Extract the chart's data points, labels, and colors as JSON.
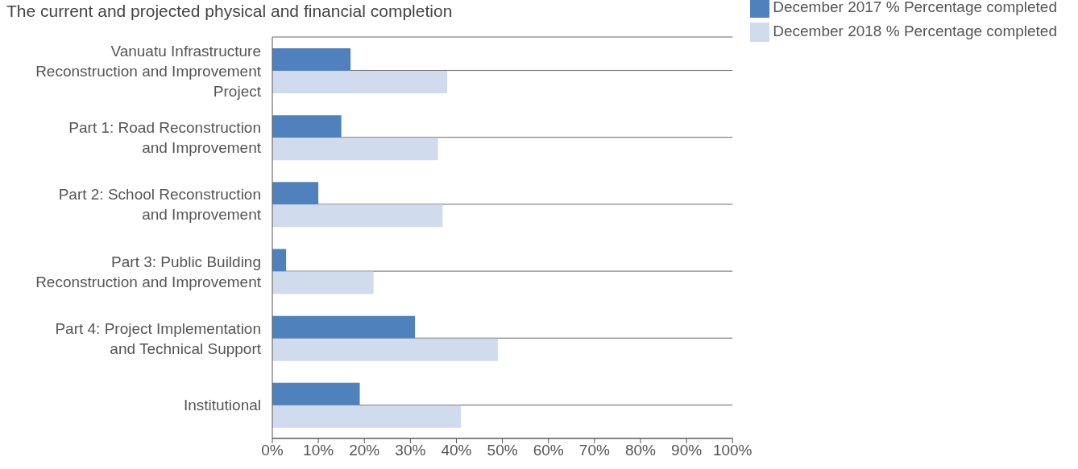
{
  "chart_data": {
    "type": "bar",
    "orientation": "horizontal",
    "title": "The current and projected physical and financial completion",
    "categories": [
      "Vanuatu Infrastructure Reconstruction and Improvement Project",
      "Part 1: Road Reconstruction and Improvement",
      "Part 2: School Reconstruction and Improvement",
      "Part 3: Public Building Reconstruction and Improvement",
      "Part 4: Project Implementation and Technical Support",
      "Institutional"
    ],
    "series": [
      {
        "name": "December 2017 % Percentage completed",
        "color": "#4f81bd",
        "values": [
          17,
          15,
          10,
          3,
          31,
          19
        ]
      },
      {
        "name": "December 2018 % Percentage completed",
        "color": "#d0dbed",
        "values": [
          38,
          36,
          37,
          22,
          49,
          41
        ]
      }
    ],
    "xlim": [
      0,
      100
    ],
    "xticks": [
      {
        "value": 0,
        "label": "0%"
      },
      {
        "value": 10,
        "label": "10%"
      },
      {
        "value": 20,
        "label": "20%"
      },
      {
        "value": 30,
        "label": "30%"
      },
      {
        "value": 40,
        "label": "40%"
      },
      {
        "value": 50,
        "label": "50%"
      },
      {
        "value": 60,
        "label": "60%"
      },
      {
        "value": 70,
        "label": "70%"
      },
      {
        "value": 80,
        "label": "80%"
      },
      {
        "value": 90,
        "label": "90%"
      },
      {
        "value": 100,
        "label": "100%"
      }
    ],
    "grid": "y",
    "legend": "top right"
  }
}
